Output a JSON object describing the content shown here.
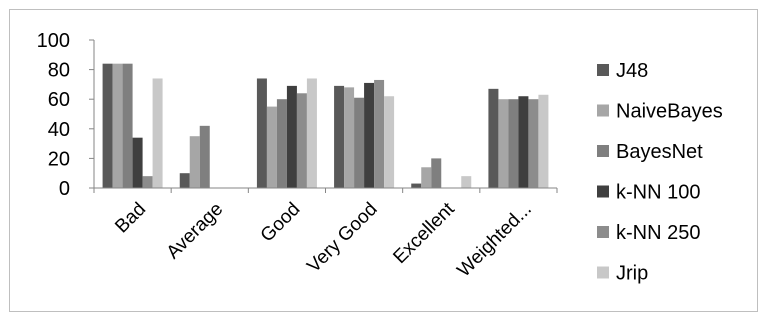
{
  "chart_data": {
    "type": "bar",
    "categories": [
      "Bad",
      "Average",
      "Good",
      "Very Good",
      "Excellent",
      "Weighted..."
    ],
    "series": [
      {
        "name": "J48",
        "values": [
          84,
          10,
          74,
          69,
          3,
          67
        ],
        "color": "#595959"
      },
      {
        "name": "NaiveBayes",
        "values": [
          84,
          35,
          55,
          68,
          14,
          60
        ],
        "color": "#a6a6a6"
      },
      {
        "name": "BayesNet",
        "values": [
          84,
          42,
          60,
          61,
          20,
          60
        ],
        "color": "#7f7f7f"
      },
      {
        "name": "k-NN 100",
        "values": [
          34,
          0,
          69,
          71,
          0,
          62
        ],
        "color": "#3f3f3f"
      },
      {
        "name": "k-NN 250",
        "values": [
          8,
          0,
          64,
          73,
          0,
          60
        ],
        "color": "#8c8c8c"
      },
      {
        "name": "Jrip",
        "values": [
          74,
          0,
          74,
          62,
          8,
          63
        ],
        "color": "#c8c8c8"
      }
    ],
    "yticks": [
      "0",
      "20",
      "40",
      "60",
      "80",
      "100"
    ],
    "ylim": [
      0,
      100
    ],
    "grid": false,
    "legend": "right"
  }
}
